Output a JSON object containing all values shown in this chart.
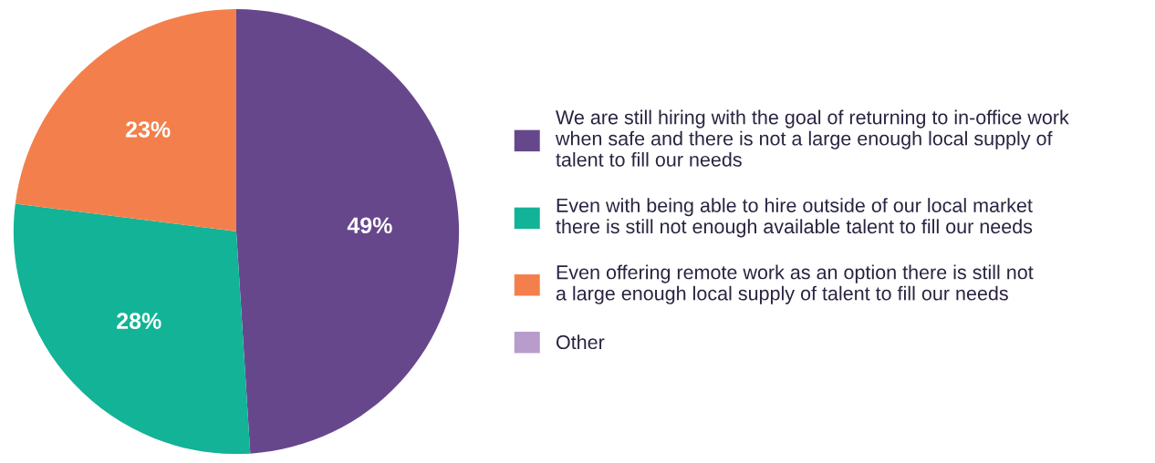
{
  "chart_data": {
    "type": "pie",
    "categories": [
      "We are still hiring with the goal of returning to in-office work\nwhen safe and there is not a large enough local supply of\ntalent to fill our needs",
      "Even with being able to hire outside of our local market\nthere is still not enough available talent to fill our needs",
      "Even offering remote work as an option there is still not\na large enough local supply of talent to fill our needs",
      "Other"
    ],
    "values": [
      49,
      28,
      23,
      0
    ],
    "colors": [
      "#67478c",
      "#12b396",
      "#f3804c",
      "#b89ccb"
    ],
    "value_labels": [
      "49%",
      "28%",
      "23%",
      null
    ],
    "legend": "right"
  }
}
